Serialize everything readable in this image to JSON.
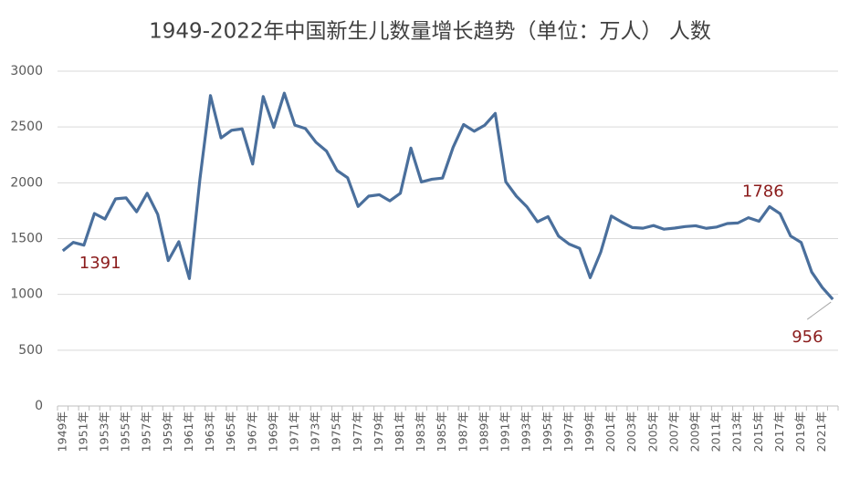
{
  "chart_data": {
    "type": "line",
    "title": "1949-2022年中国新生儿数量增长趋势（单位：万人） 人数",
    "categories": [
      "1949年",
      null,
      "1951年",
      null,
      "1953年",
      null,
      "1955年",
      null,
      "1957年",
      null,
      "1959年",
      null,
      "1961年",
      null,
      "1963年",
      null,
      "1965年",
      null,
      "1967年",
      null,
      "1969年",
      null,
      "1971年",
      null,
      "1973年",
      null,
      "1975年",
      null,
      "1977年",
      null,
      "1979年",
      null,
      "1981年",
      null,
      "1983年",
      null,
      "1985年",
      null,
      "1987年",
      null,
      "1989年",
      null,
      "1991年",
      null,
      "1993年",
      null,
      "1995年",
      null,
      "1997年",
      null,
      "1999年",
      null,
      "2001年",
      null,
      "2003年",
      null,
      "2005年",
      null,
      "2007年",
      null,
      "2009年",
      null,
      "2011年",
      null,
      "2013年",
      null,
      "2015年",
      null,
      "2017年",
      null,
      "2019年",
      null,
      "2021年",
      null
    ],
    "series": [
      {
        "name": "人数",
        "color": "#4a6f9c",
        "values": [
          1391,
          1466,
          1441,
          1725,
          1675,
          1856,
          1865,
          1740,
          1906,
          1717,
          1303,
          1472,
          1142,
          2033,
          2781,
          2402,
          2470,
          2483,
          2168,
          2773,
          2496,
          2803,
          2517,
          2486,
          2363,
          2284,
          2110,
          2045,
          1788,
          1880,
          1893,
          1838,
          1906,
          2311,
          2007,
          2032,
          2042,
          2317,
          2522,
          2462,
          2516,
          2621,
          2008,
          1880,
          1785,
          1651,
          1697,
          1522,
          1451,
          1412,
          1150,
          1379,
          1702,
          1647,
          1599,
          1593,
          1617,
          1584,
          1594,
          1608,
          1615,
          1592,
          1604,
          1635,
          1640,
          1687,
          1655,
          1786,
          1723,
          1523,
          1465,
          1200,
          1062,
          956
        ],
        "value_labels": [
          "1391",
          null,
          null,
          null,
          null,
          null,
          null,
          null,
          null,
          null,
          null,
          null,
          null,
          null,
          null,
          null,
          null,
          null,
          null,
          null,
          null,
          null,
          null,
          null,
          null,
          null,
          null,
          null,
          null,
          null,
          null,
          null,
          null,
          null,
          null,
          null,
          null,
          null,
          null,
          null,
          null,
          null,
          null,
          null,
          null,
          null,
          null,
          null,
          null,
          null,
          null,
          null,
          null,
          null,
          null,
          null,
          null,
          null,
          null,
          null,
          null,
          null,
          null,
          null,
          null,
          null,
          null,
          "1786",
          null,
          null,
          null,
          null,
          null,
          "956"
        ]
      }
    ],
    "ylim": [
      0,
      3000
    ],
    "yticks": [
      0,
      500,
      1000,
      1500,
      2000,
      2500,
      3000
    ],
    "grid": true
  }
}
